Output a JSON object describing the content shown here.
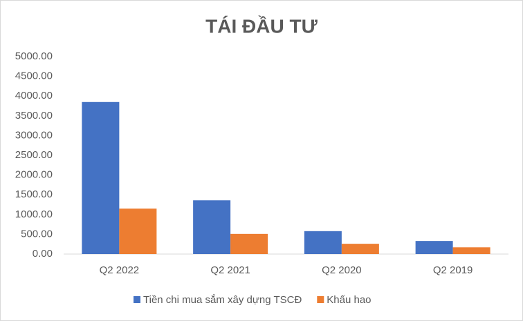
{
  "chart_data": {
    "type": "bar",
    "title": "TÁI ĐẦU TƯ",
    "categories": [
      "Q2 2022",
      "Q2 2021",
      "Q2 2020",
      "Q2 2019"
    ],
    "series": [
      {
        "name": "Tiền chi mua sắm xây dựng TSCĐ",
        "color": "#4472c4",
        "values": [
          3850,
          1360,
          580,
          330
        ]
      },
      {
        "name": "Khấu hao",
        "color": "#ed7d31",
        "values": [
          1150,
          510,
          260,
          170
        ]
      }
    ],
    "ylim": [
      0,
      5000
    ],
    "yticks": [
      {
        "value": 0,
        "label": "0.00"
      },
      {
        "value": 500,
        "label": "500.00"
      },
      {
        "value": 1000,
        "label": "1000.00"
      },
      {
        "value": 1500,
        "label": "1500.00"
      },
      {
        "value": 2000,
        "label": "2000.00"
      },
      {
        "value": 2500,
        "label": "2500.00"
      },
      {
        "value": 3000,
        "label": "3000.00"
      },
      {
        "value": 3500,
        "label": "3500.00"
      },
      {
        "value": 4000,
        "label": "4000.00"
      },
      {
        "value": 4500,
        "label": "4500.00"
      },
      {
        "value": 5000,
        "label": "5000.00"
      }
    ],
    "grid": false,
    "legend": "bottom"
  }
}
